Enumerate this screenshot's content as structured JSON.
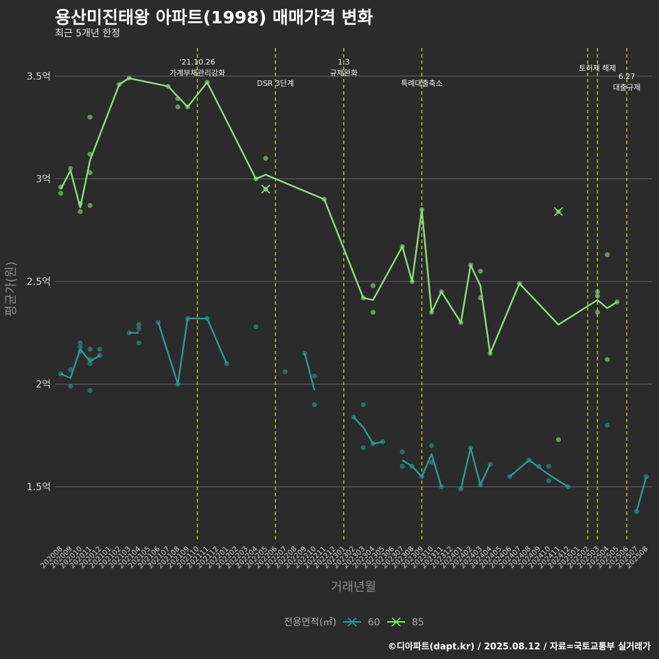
{
  "header": {
    "title": "용산미진태왕 아파트(1998) 매매가격 변화",
    "subtitle": "최근 5개년 한정"
  },
  "footer": {
    "caption": "©디아파트(dapt.kr) / 2025.08.12 / 자료=국토교통부 실거래가"
  },
  "colors": {
    "s60": "#2a9a92",
    "s85": "#8be07c",
    "vline": "#d8e030",
    "grid": "#5a5a5a",
    "background": "#2b2b2b"
  },
  "chart_data": {
    "type": "line",
    "xlabel": "거래년월",
    "ylabel": "평균가(원)",
    "ylim": [
      1.23,
      3.65
    ],
    "yticks": [
      {
        "v": 1.5,
        "label": "1.5억"
      },
      {
        "v": 2,
        "label": "2억"
      },
      {
        "v": 2.5,
        "label": "2.5억"
      },
      {
        "v": 3,
        "label": "3억"
      },
      {
        "v": 3.5,
        "label": "3.5억"
      }
    ],
    "x_start": "202008",
    "x_end": "202508",
    "xticks": [
      "202008",
      "202009",
      "202010",
      "202011",
      "202012",
      "202101",
      "202102",
      "202103",
      "202104",
      "202105",
      "202106",
      "202107",
      "202108",
      "202109",
      "202110",
      "202111",
      "202112",
      "202201",
      "202202",
      "202203",
      "202204",
      "202205",
      "202206",
      "202207",
      "202208",
      "202209",
      "202210",
      "202211",
      "202212",
      "202301",
      "202302",
      "202303",
      "202304",
      "202305",
      "202306",
      "202307",
      "202308",
      "202309",
      "202310",
      "202311",
      "202312",
      "202401",
      "202402",
      "202403",
      "202404",
      "202405",
      "202406",
      "202407",
      "202408",
      "202409",
      "202410",
      "202411",
      "202412",
      "202501",
      "202502",
      "202503",
      "202504",
      "202505",
      "202506",
      "202507",
      "202508"
    ],
    "legend": {
      "title": "전용면적(㎡)",
      "position": "bottom"
    },
    "annotations": [
      {
        "x": "202110",
        "lines": [
          "'21.10.26",
          "가계부채관리강화"
        ],
        "row": "top"
      },
      {
        "x": "202206",
        "lines": [
          "DSR 3단계"
        ],
        "row": "low"
      },
      {
        "x": "202301",
        "lines": [
          "1.3",
          "규제완화"
        ],
        "row": "top"
      },
      {
        "x": "202309",
        "lines": [
          "특례대출축소"
        ],
        "row": "low"
      },
      {
        "x": "202502",
        "lines": [],
        "row": "none"
      },
      {
        "x": "202503",
        "lines": [
          "토허제 해제"
        ],
        "row": "mid"
      },
      {
        "x": "202506",
        "lines": [
          "6.27",
          "대출규제"
        ],
        "row": "right"
      }
    ],
    "series": [
      {
        "name": "60",
        "line": [
          [
            [
              "202008",
              2.05
            ],
            [
              "202009",
              2.03
            ],
            [
              "202010",
              2.17
            ],
            [
              "202011",
              2.11
            ],
            [
              "202012",
              2.14
            ]
          ],
          [
            [
              "202103",
              2.25
            ],
            [
              "202104",
              2.25
            ]
          ],
          [
            [
              "202106",
              2.3
            ],
            [
              "202108",
              2.0
            ],
            [
              "202109",
              2.32
            ],
            [
              "202111",
              2.32
            ],
            [
              "202201",
              2.1
            ]
          ],
          [
            [
              "202209",
              2.15
            ],
            [
              "202210",
              1.97
            ]
          ],
          [
            [
              "202302",
              1.84
            ],
            [
              "202303",
              1.79
            ],
            [
              "202304",
              1.71
            ],
            [
              "202305",
              1.72
            ]
          ],
          [
            [
              "202307",
              1.63
            ],
            [
              "202308",
              1.6
            ],
            [
              "202309",
              1.55
            ],
            [
              "202310",
              1.66
            ],
            [
              "202311",
              1.5
            ]
          ],
          [
            [
              "202401",
              1.49
            ],
            [
              "202402",
              1.69
            ],
            [
              "202403",
              1.51
            ],
            [
              "202404",
              1.61
            ]
          ],
          [
            [
              "202406",
              1.55
            ],
            [
              "202408",
              1.63
            ],
            [
              "202410",
              1.56
            ],
            [
              "202412",
              1.5
            ]
          ],
          [
            [
              "202507",
              1.38
            ],
            [
              "202508",
              1.55
            ]
          ]
        ],
        "points": [
          [
            "202008",
            2.05
          ],
          [
            "202009",
            2.07
          ],
          [
            "202009",
            1.99
          ],
          [
            "202010",
            2.2
          ],
          [
            "202010",
            2.18
          ],
          [
            "202010",
            2.16
          ],
          [
            "202011",
            2.17
          ],
          [
            "202011",
            2.12
          ],
          [
            "202011",
            2.1
          ],
          [
            "202011",
            1.97
          ],
          [
            "202012",
            2.17
          ],
          [
            "202012",
            2.14
          ],
          [
            "202103",
            2.25
          ],
          [
            "202104",
            2.29
          ],
          [
            "202104",
            2.27
          ],
          [
            "202104",
            2.2
          ],
          [
            "202106",
            2.3
          ],
          [
            "202108",
            2.0
          ],
          [
            "202109",
            2.32
          ],
          [
            "202111",
            2.32
          ],
          [
            "202201",
            2.1
          ],
          [
            "202204",
            2.28
          ],
          [
            "202207",
            2.06
          ],
          [
            "202209",
            2.15
          ],
          [
            "202210",
            2.04
          ],
          [
            "202210",
            1.9
          ],
          [
            "202302",
            1.84
          ],
          [
            "202303",
            1.9
          ],
          [
            "202303",
            1.69
          ],
          [
            "202304",
            1.71
          ],
          [
            "202305",
            1.72
          ],
          [
            "202307",
            1.67
          ],
          [
            "202307",
            1.6
          ],
          [
            "202308",
            1.6
          ],
          [
            "202309",
            1.55
          ],
          [
            "202310",
            1.7
          ],
          [
            "202310",
            1.62
          ],
          [
            "202311",
            1.5
          ],
          [
            "202401",
            1.49
          ],
          [
            "202402",
            1.69
          ],
          [
            "202403",
            1.51
          ],
          [
            "202404",
            1.61
          ],
          [
            "202406",
            1.55
          ],
          [
            "202408",
            1.63
          ],
          [
            "202409",
            1.6
          ],
          [
            "202410",
            1.6
          ],
          [
            "202410",
            1.53
          ],
          [
            "202412",
            1.5
          ],
          [
            "202504",
            1.8
          ],
          [
            "202507",
            1.38
          ],
          [
            "202508",
            1.55
          ]
        ],
        "crosses": [
          [
            "202205",
            2.95
          ]
        ]
      },
      {
        "name": "85",
        "line": [
          [
            [
              "202008",
              2.95
            ],
            [
              "202009",
              3.04
            ],
            [
              "202010",
              2.86
            ],
            [
              "202011",
              3.09
            ],
            [
              "202102",
              3.46
            ],
            [
              "202103",
              3.49
            ],
            [
              "202107",
              3.45
            ],
            [
              "202109",
              3.35
            ],
            [
              "202111",
              3.47
            ],
            [
              "202204",
              3.0
            ],
            [
              "202205",
              3.02
            ],
            [
              "202211",
              2.9
            ],
            [
              "202303",
              2.42
            ],
            [
              "202304",
              2.41
            ],
            [
              "202307",
              2.67
            ],
            [
              "202308",
              2.5
            ],
            [
              "202309",
              2.85
            ],
            [
              "202310",
              2.35
            ],
            [
              "202311",
              2.45
            ],
            [
              "202401",
              2.3
            ],
            [
              "202402",
              2.58
            ],
            [
              "202403",
              2.48
            ],
            [
              "202404",
              2.15
            ],
            [
              "202407",
              2.49
            ],
            [
              "202411",
              2.29
            ],
            [
              "202503",
              2.41
            ],
            [
              "202504",
              2.37
            ],
            [
              "202505",
              2.4
            ]
          ]
        ],
        "points": [
          [
            "202008",
            2.96
          ],
          [
            "202008",
            2.93
          ],
          [
            "202009",
            3.05
          ],
          [
            "202010",
            2.88
          ],
          [
            "202010",
            2.84
          ],
          [
            "202011",
            3.3
          ],
          [
            "202011",
            3.12
          ],
          [
            "202011",
            3.03
          ],
          [
            "202011",
            2.87
          ],
          [
            "202102",
            3.46
          ],
          [
            "202103",
            3.49
          ],
          [
            "202107",
            3.45
          ],
          [
            "202108",
            3.39
          ],
          [
            "202108",
            3.35
          ],
          [
            "202109",
            3.35
          ],
          [
            "202111",
            3.47
          ],
          [
            "202204",
            3.0
          ],
          [
            "202205",
            3.1
          ],
          [
            "202211",
            2.9
          ],
          [
            "202303",
            2.42
          ],
          [
            "202304",
            2.48
          ],
          [
            "202304",
            2.35
          ],
          [
            "202307",
            2.67
          ],
          [
            "202308",
            2.5
          ],
          [
            "202309",
            2.85
          ],
          [
            "202310",
            2.35
          ],
          [
            "202311",
            2.45
          ],
          [
            "202401",
            2.3
          ],
          [
            "202402",
            2.58
          ],
          [
            "202403",
            2.55
          ],
          [
            "202403",
            2.42
          ],
          [
            "202404",
            2.15
          ],
          [
            "202407",
            2.49
          ],
          [
            "202411",
            1.73
          ],
          [
            "202503",
            2.45
          ],
          [
            "202503",
            2.43
          ],
          [
            "202503",
            2.35
          ],
          [
            "202504",
            2.63
          ],
          [
            "202504",
            2.12
          ],
          [
            "202505",
            2.4
          ]
        ],
        "crosses": [
          [
            "202205",
            2.95
          ],
          [
            "202411",
            2.84
          ]
        ]
      }
    ]
  }
}
